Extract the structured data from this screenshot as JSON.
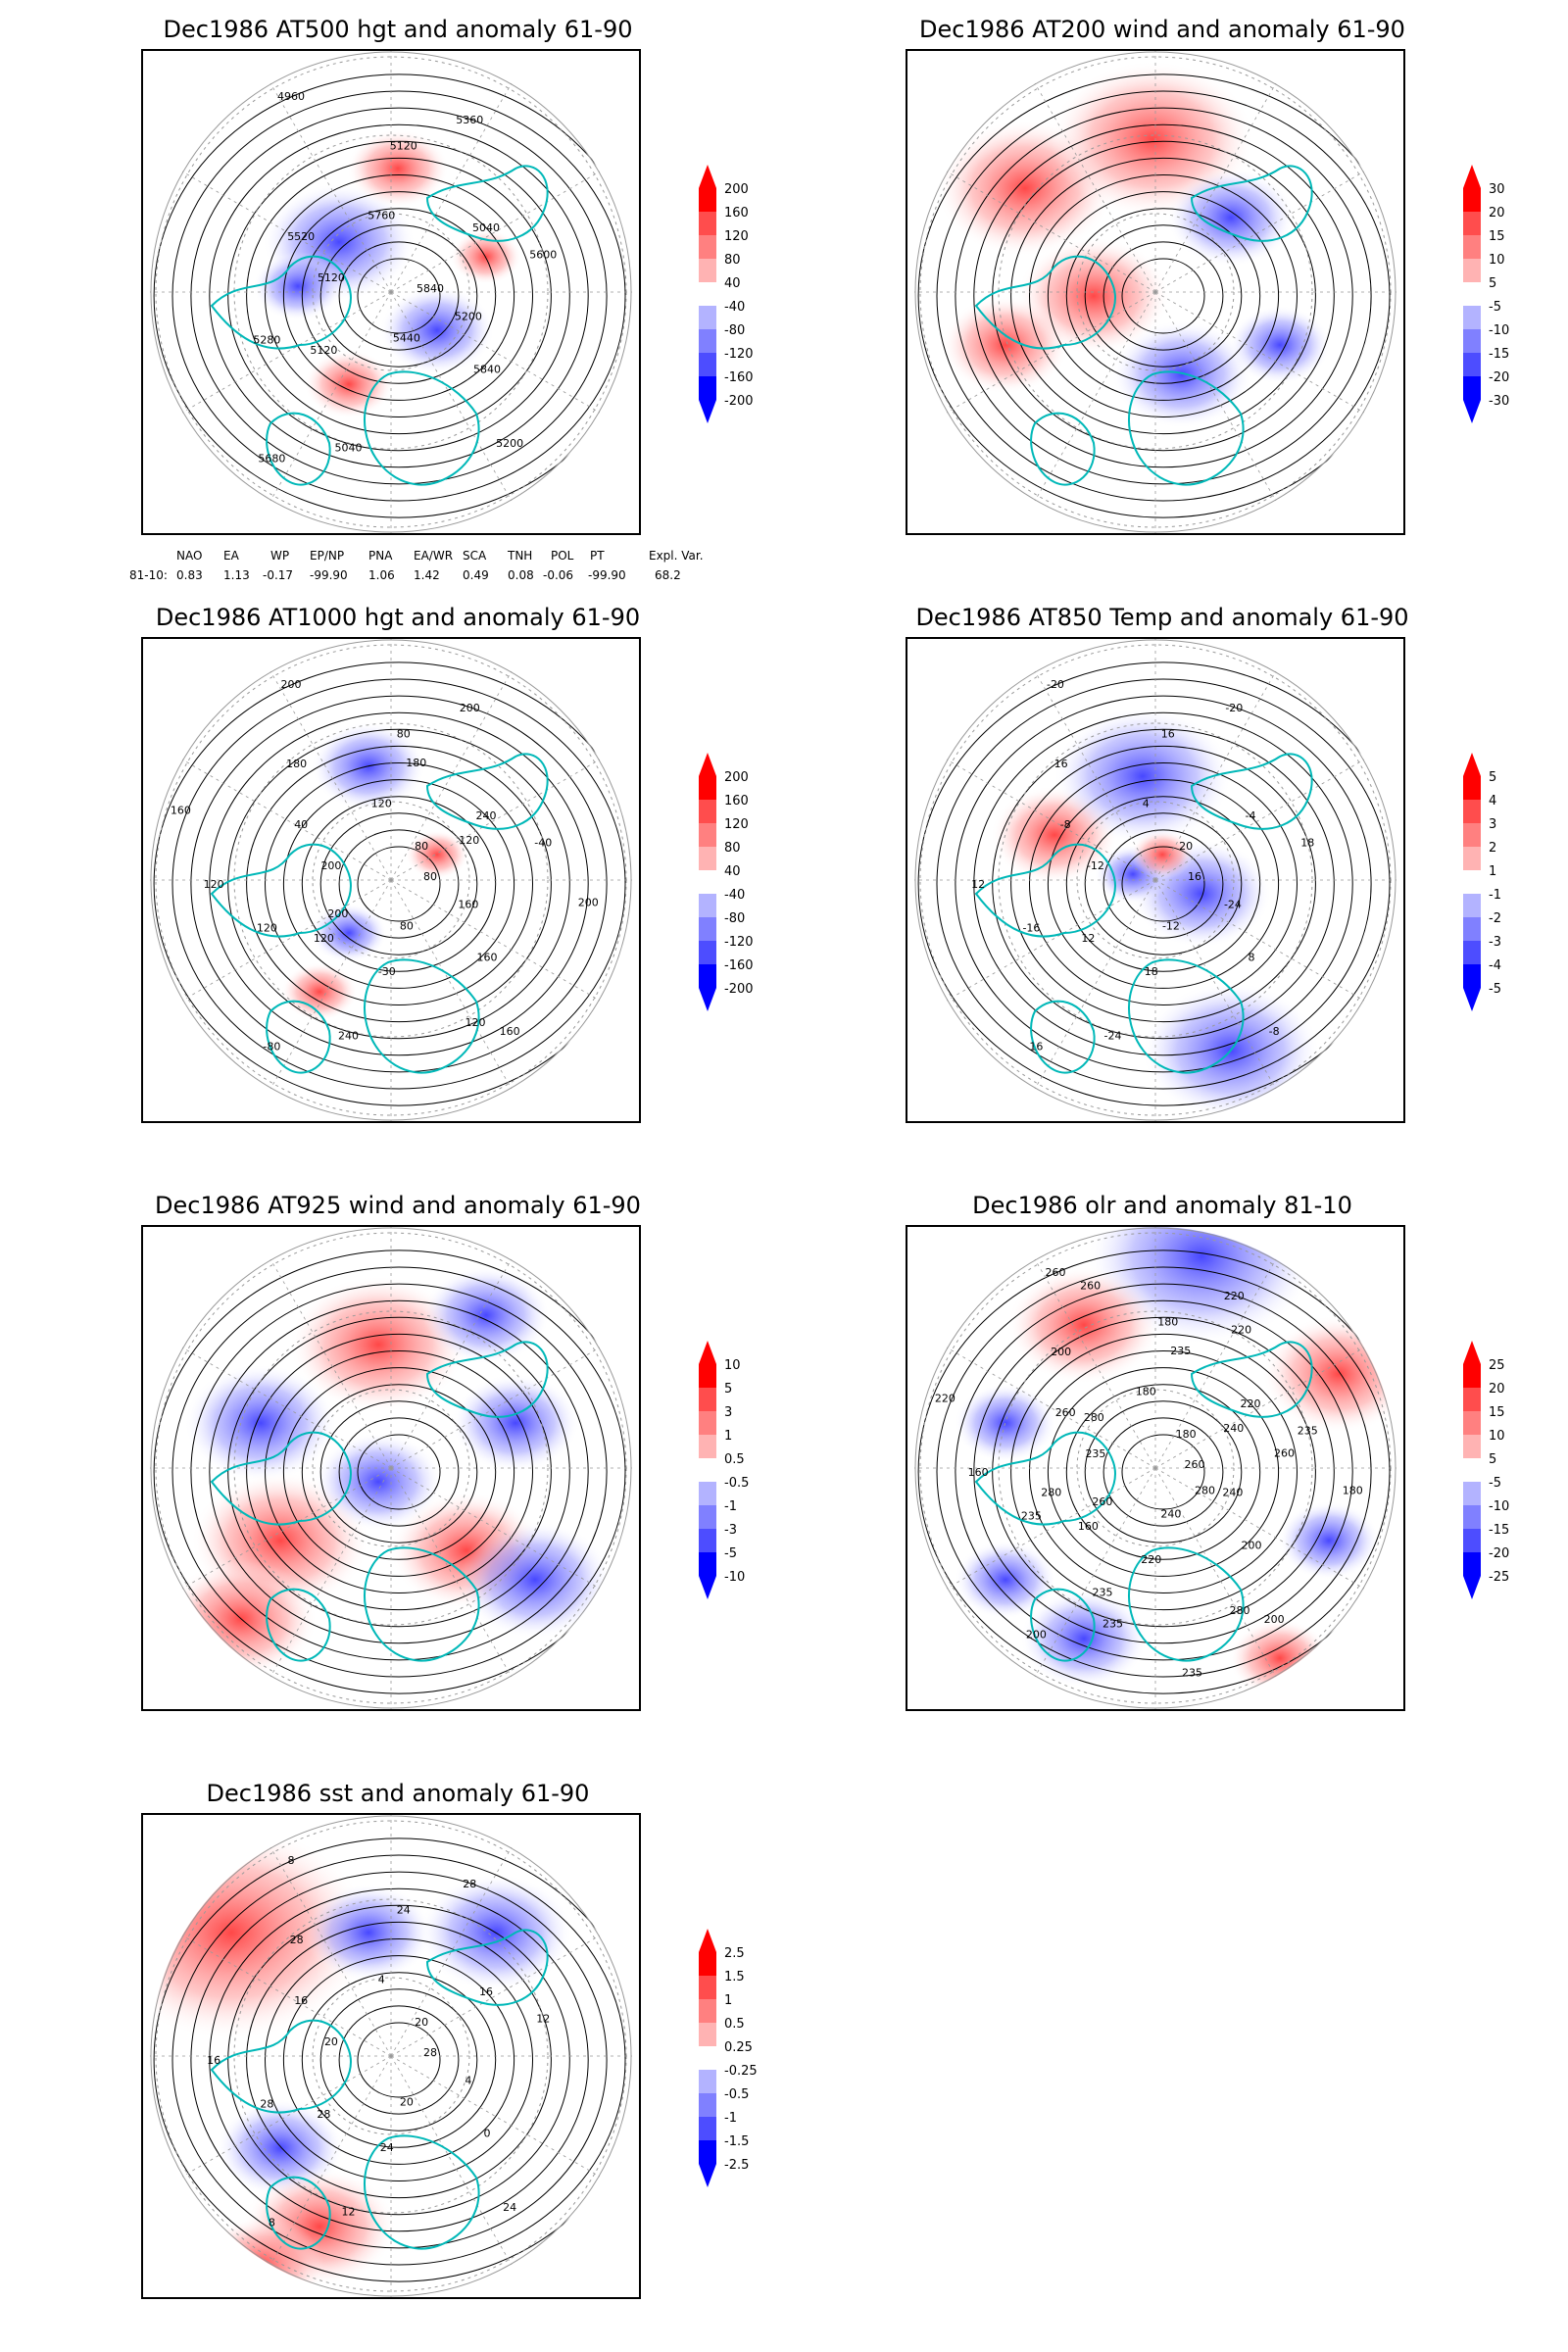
{
  "panels": [
    {
      "title": "Dec1986 AT500 hgt and anomaly 61-90",
      "colorbar": [
        "200",
        "160",
        "120",
        "80",
        "40",
        "-40",
        "-80",
        "-120",
        "-160",
        "-200"
      ],
      "contour_labels": [
        "5840",
        "5120",
        "5120",
        "5200",
        "5120",
        "5040",
        "5040",
        "4960",
        "5200",
        "5280",
        "5360",
        "5440",
        "5520",
        "5600",
        "5680",
        "5760",
        "5840"
      ]
    },
    {
      "title": "Dec1986 AT200 wind and anomaly 61-90",
      "colorbar": [
        "30",
        "20",
        "15",
        "10",
        "5",
        "-5",
        "-10",
        "-15",
        "-20",
        "-30"
      ],
      "contour_labels": []
    },
    {
      "title": "Dec1986 AT1000 hgt and anomaly 61-90",
      "colorbar": [
        "200",
        "160",
        "120",
        "80",
        "40",
        "-40",
        "-80",
        "-120",
        "-160",
        "-200"
      ],
      "contour_labels": [
        "80",
        "120",
        "80",
        "160",
        "200",
        "240",
        "240",
        "200",
        "160",
        "120",
        "200",
        "80",
        "40",
        "-40",
        "-80",
        "120",
        "160",
        "120",
        "80",
        "-30",
        "180",
        "200",
        "200",
        "180",
        "120",
        "160",
        "120"
      ]
    },
    {
      "title": "Dec1986 AT850 Temp and anomaly 61-90",
      "colorbar": [
        "5",
        "4",
        "3",
        "2",
        "1",
        "-1",
        "-2",
        "-3",
        "-4",
        "-5"
      ],
      "contour_labels": [
        "16",
        "12",
        "16",
        "-8",
        "-12",
        "-4",
        "-24",
        "-20",
        "-24",
        "-16",
        "-20",
        "-12",
        "-8",
        "18",
        "16",
        "4",
        "8",
        "12",
        "20",
        "18",
        "16"
      ]
    },
    {
      "title": "Dec1986 AT925 wind and anomaly 61-90",
      "colorbar": [
        "10",
        "5",
        "3",
        "1",
        "0.5",
        "-0.5",
        "-1",
        "-3",
        "-5",
        "-10"
      ],
      "contour_labels": []
    },
    {
      "title": "Dec1986 olr and anomaly 81-10",
      "colorbar": [
        "25",
        "20",
        "15",
        "10",
        "5",
        "-5",
        "-10",
        "-15",
        "-20",
        "-25"
      ],
      "contour_labels": [
        "260",
        "160",
        "180",
        "200",
        "235",
        "220",
        "235",
        "260",
        "240",
        "235",
        "220",
        "240",
        "260",
        "235",
        "200",
        "180",
        "200",
        "160",
        "180",
        "220",
        "200",
        "180",
        "260",
        "235",
        "280",
        "220",
        "240",
        "235",
        "260",
        "280",
        "280",
        "220",
        "235",
        "280",
        "260"
      ]
    },
    {
      "title": "Dec1986 sst and anomaly 61-90",
      "colorbar": [
        "2.5",
        "1.5",
        "1",
        "0.5",
        "0.25",
        "-0.25",
        "-0.5",
        "-1",
        "-1.5",
        "-2.5"
      ],
      "contour_labels": [
        "28",
        "28",
        "24",
        "24",
        "20",
        "16",
        "12",
        "8",
        "4",
        "28",
        "28",
        "20",
        "16",
        "12",
        "8",
        "4",
        "0",
        "16",
        "20",
        "24",
        "28"
      ]
    }
  ],
  "teleconnection": {
    "headers": [
      "NAO",
      "EA",
      "WP",
      "EP/NP",
      "PNA",
      "EA/WR",
      "SCA",
      "TNH",
      "POL",
      "PT",
      "Expl. Var."
    ],
    "row_label": "81-10:",
    "values": [
      "0.83",
      "1.13",
      "-0.17",
      "-99.90",
      "1.06",
      "1.42",
      "0.49",
      "0.08",
      "-0.06",
      "-99.90",
      "68.2"
    ]
  },
  "colors": {
    "positive_scale": [
      "#ff0000",
      "#ff4d4d",
      "#ff8080",
      "#ffb3b3",
      "#ffd9d9"
    ],
    "negative_scale": [
      "#d9d9ff",
      "#b3b3ff",
      "#8080ff",
      "#4d4dff",
      "#0000ff"
    ],
    "coastline": "#00b8b8",
    "contour": "#000000",
    "grid": "#999999"
  }
}
